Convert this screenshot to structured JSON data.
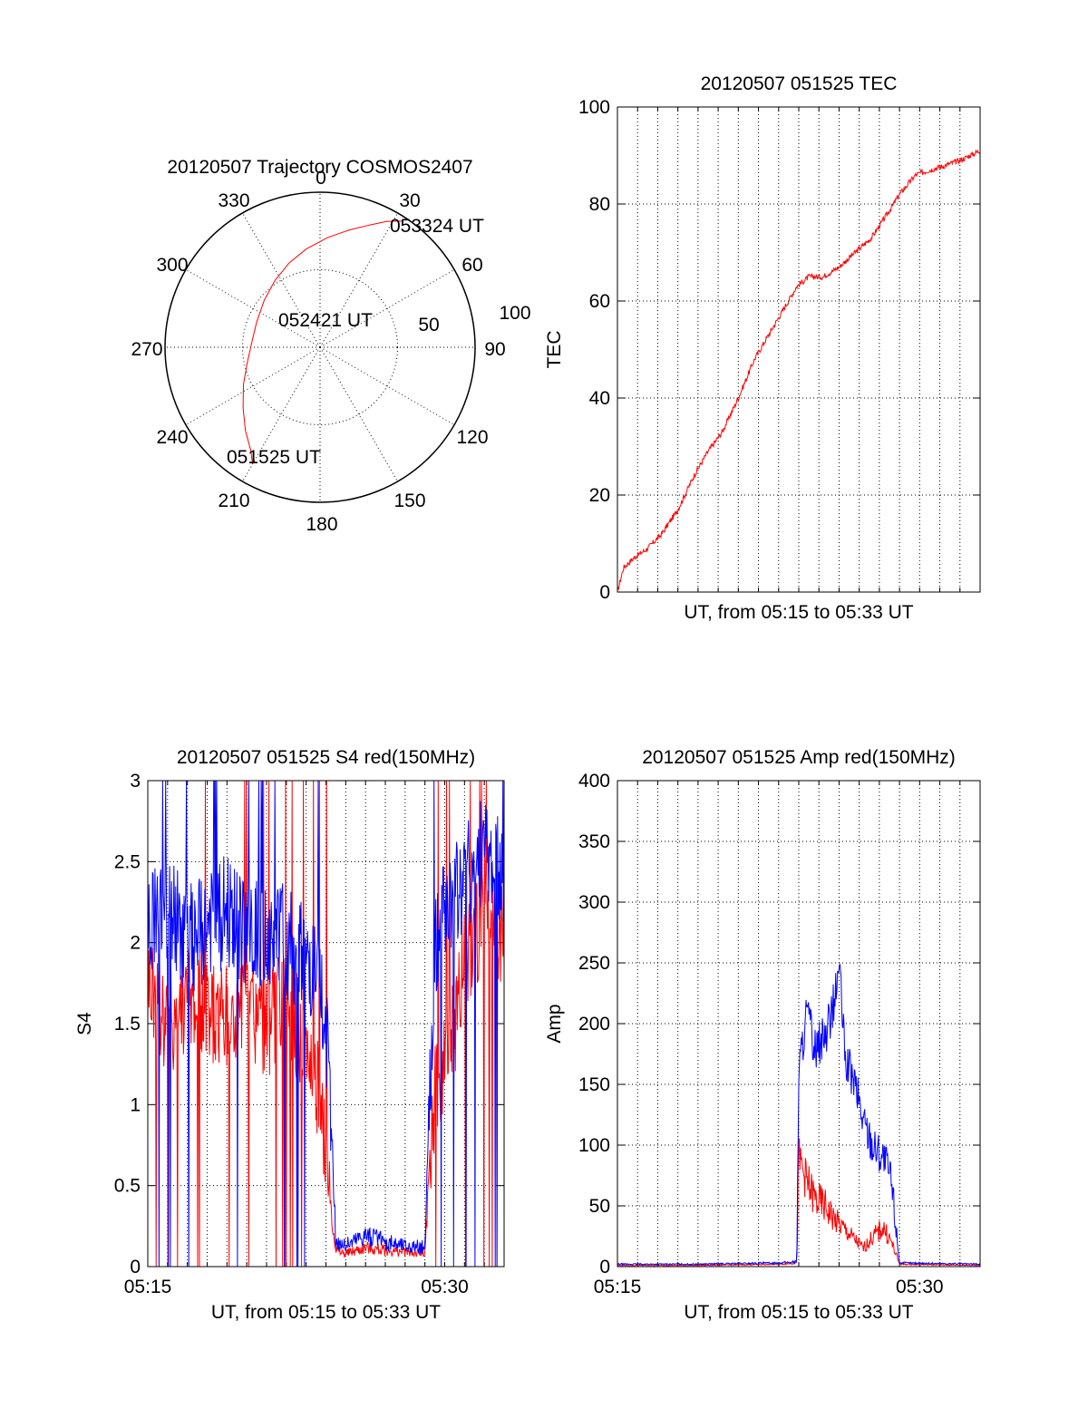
{
  "colors": {
    "red": "#ff0000",
    "blue": "#0000ff"
  },
  "polar": {
    "title": "20120507 Trajectory COSMOS2407",
    "angle_labels": [
      "0",
      "30",
      "60",
      "90",
      "120",
      "150",
      "180",
      "210",
      "240",
      "270",
      "300",
      "330"
    ],
    "radial_labels": [
      "50",
      "100"
    ],
    "annotations": {
      "start": "051525 UT",
      "mid": "052421 UT",
      "end": "053324 UT"
    },
    "trajectory": {
      "azimuth_deg": [
        210,
        214,
        222,
        232,
        244,
        258,
        275,
        292,
        310,
        326,
        340,
        352,
        4,
        14,
        22,
        28,
        33
      ],
      "radius": [
        87,
        80,
        72,
        63,
        55,
        48,
        44,
        44,
        47,
        52,
        58,
        64,
        71,
        78,
        85,
        92,
        97
      ]
    }
  },
  "chart_data": [
    {
      "type": "line",
      "title": "20120507 051525 TEC",
      "xlabel": "UT, from 05:15 to 05:33 UT",
      "ylabel": "TEC",
      "ylim": [
        0,
        100
      ],
      "yticks": [
        "0",
        "20",
        "40",
        "60",
        "80",
        "100"
      ],
      "x_minutes_range": [
        0,
        18
      ],
      "grid": true,
      "series": [
        {
          "color": "red",
          "x": [
            0,
            0.3,
            0.8,
            1.5,
            2.2,
            3.0,
            3.8,
            4.5,
            5.2,
            6.0,
            6.8,
            7.5,
            8.2,
            8.9,
            9.5,
            10.2,
            11.0,
            11.8,
            12.6,
            13.4,
            14.0,
            14.8,
            15.5,
            16.3,
            17.0,
            18.0
          ],
          "y": [
            0,
            5,
            7,
            9,
            12,
            17,
            24,
            29,
            33,
            40,
            48,
            53,
            58,
            63,
            65,
            65,
            67,
            70,
            73,
            78,
            82,
            86,
            87,
            88,
            89,
            91
          ]
        }
      ]
    },
    {
      "type": "line",
      "title": "20120507 051525 S4 red(150MHz)",
      "xlabel": "UT, from 05:15 to 05:33 UT",
      "ylabel": "S4",
      "ylim": [
        0,
        3
      ],
      "yticks": [
        "0",
        "0.5",
        "1",
        "1.5",
        "2",
        "2.5",
        "3"
      ],
      "xticks": [
        {
          "minute": 0,
          "label": "05:15"
        },
        {
          "minute": 15,
          "label": "05:30"
        }
      ],
      "x_minutes_range": [
        0,
        18
      ],
      "grid": true,
      "series": [
        {
          "color": "red",
          "x": [
            0,
            1,
            2,
            3,
            4,
            5,
            6,
            7,
            8,
            8.5,
            9,
            9.5,
            10,
            11,
            12,
            13,
            14,
            14.5,
            15,
            15.5,
            16,
            17,
            18
          ],
          "y": [
            1.8,
            1.5,
            1.7,
            1.6,
            1.5,
            1.6,
            1.5,
            1.6,
            1.4,
            1.2,
            0.7,
            0.1,
            0.08,
            0.12,
            0.1,
            0.09,
            0.08,
            1.1,
            1.3,
            1.5,
            1.9,
            2.2,
            2.0
          ]
        },
        {
          "color": "blue",
          "x": [
            0,
            1,
            2,
            3,
            4,
            5,
            6,
            7,
            8,
            8.5,
            9,
            9.5,
            10,
            11,
            12,
            13,
            14,
            14.5,
            15,
            15.5,
            16,
            17,
            18
          ],
          "y": [
            2.1,
            2.2,
            2.0,
            2.1,
            2.2,
            2.0,
            2.1,
            2.0,
            1.9,
            1.8,
            1.5,
            0.15,
            0.13,
            0.2,
            0.15,
            0.13,
            0.12,
            2.0,
            2.2,
            2.3,
            2.4,
            2.6,
            2.4
          ]
        }
      ]
    },
    {
      "type": "line",
      "title": "20120507 051525 Amp red(150MHz)",
      "xlabel": "UT, from 05:15 to 05:33 UT",
      "ylabel": "Amp",
      "ylim": [
        0,
        400
      ],
      "yticks": [
        "0",
        "50",
        "100",
        "150",
        "200",
        "250",
        "300",
        "350",
        "400"
      ],
      "xticks": [
        {
          "minute": 0,
          "label": "05:15"
        },
        {
          "minute": 15,
          "label": "05:30"
        }
      ],
      "x_minutes_range": [
        0,
        18
      ],
      "grid": true,
      "series": [
        {
          "color": "red",
          "x": [
            0,
            4,
            8,
            8.9,
            9.0,
            9.4,
            9.8,
            10.3,
            10.8,
            11.3,
            11.8,
            12.2,
            12.7,
            13.2,
            13.6,
            14.0,
            18
          ],
          "y": [
            1,
            1,
            2,
            3,
            90,
            70,
            55,
            50,
            38,
            30,
            22,
            15,
            25,
            32,
            20,
            2,
            1
          ]
        },
        {
          "color": "blue",
          "x": [
            0,
            4,
            8,
            8.9,
            9.0,
            9.4,
            9.8,
            10.3,
            10.8,
            11.0,
            11.3,
            11.8,
            12.2,
            12.7,
            13.2,
            13.6,
            14.0,
            18
          ],
          "y": [
            2,
            2,
            3,
            4,
            160,
            210,
            180,
            190,
            220,
            250,
            170,
            150,
            120,
            100,
            90,
            70,
            3,
            2
          ]
        }
      ]
    }
  ]
}
